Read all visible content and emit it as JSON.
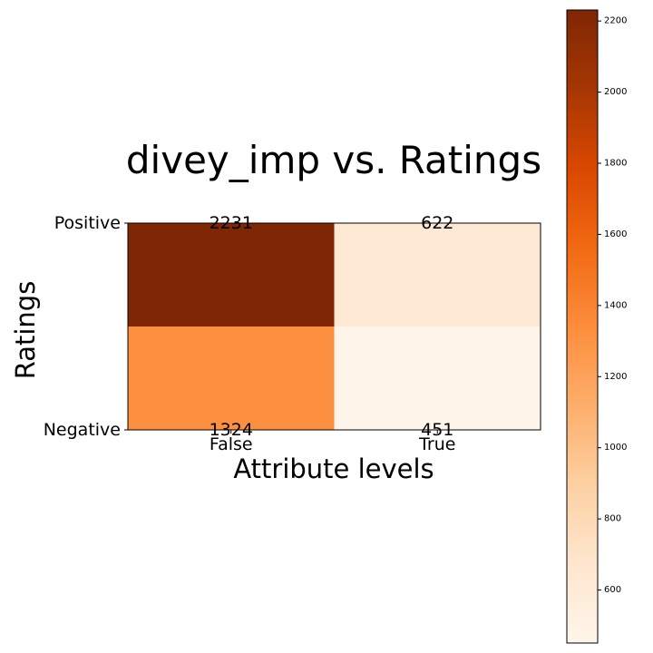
{
  "chart_data": {
    "type": "heatmap",
    "title": "divey_imp vs. Ratings",
    "xlabel": "Attribute levels",
    "ylabel": "Ratings",
    "x_categories": [
      "False",
      "True"
    ],
    "y_categories": [
      "Positive",
      "Negative"
    ],
    "cells": [
      {
        "x": "False",
        "y": "Positive",
        "value": 2231
      },
      {
        "x": "True",
        "y": "Positive",
        "value": 622
      },
      {
        "x": "False",
        "y": "Negative",
        "value": 1324
      },
      {
        "x": "True",
        "y": "Negative",
        "value": 451
      }
    ],
    "colormap": "Oranges",
    "colorbar": {
      "min": 451,
      "max": 2231,
      "ticks": [
        600,
        800,
        1000,
        1200,
        1400,
        1600,
        1800,
        2000,
        2200
      ],
      "tick_labels": [
        "600",
        "800",
        "1000",
        "1200",
        "1400",
        "1600",
        "1800",
        "2000",
        "2200"
      ]
    }
  }
}
